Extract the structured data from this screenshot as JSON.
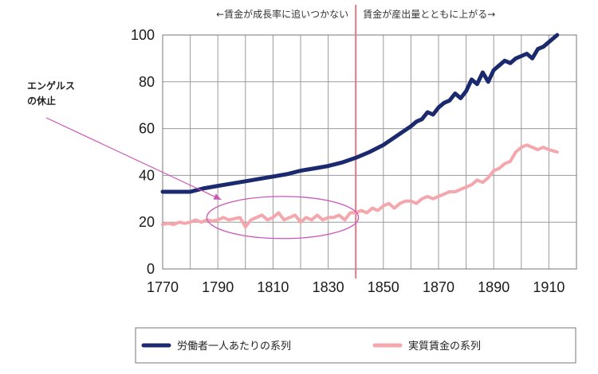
{
  "chart_data": {
    "type": "line",
    "title": "",
    "xlabel": "",
    "ylabel": "",
    "xlim": [
      1770,
      1920
    ],
    "ylim": [
      0,
      100
    ],
    "x_ticks": [
      1770,
      1790,
      1810,
      1830,
      1850,
      1870,
      1890,
      1910
    ],
    "y_ticks": [
      0,
      20,
      40,
      60,
      80,
      100
    ],
    "grid": true,
    "legend_position": "bottom",
    "divider_year": 1840,
    "notes": {
      "left": "←賃金が成長率に追いつかない",
      "right": "賃金が産出量とともに上がる→"
    },
    "annotation": {
      "line1": "エンゲルス",
      "line2": "の休止",
      "target_x": [
        1786,
        1841
      ],
      "target_y": [
        13,
        31
      ]
    },
    "series": [
      {
        "name": "労働者一人あたりの系列",
        "color": "#1b2a6e",
        "x": [
          1770,
          1775,
          1780,
          1785,
          1790,
          1795,
          1800,
          1805,
          1810,
          1815,
          1820,
          1825,
          1830,
          1835,
          1840,
          1845,
          1850,
          1855,
          1860,
          1862,
          1864,
          1866,
          1868,
          1870,
          1872,
          1874,
          1876,
          1878,
          1880,
          1882,
          1884,
          1886,
          1888,
          1890,
          1892,
          1894,
          1896,
          1898,
          1900,
          1902,
          1904,
          1906,
          1908,
          1910,
          1913
        ],
        "values": [
          33,
          33,
          33,
          34.5,
          35.5,
          36.5,
          37.5,
          38.5,
          39.5,
          40.5,
          42,
          43,
          44,
          45.5,
          47.5,
          50,
          53,
          57,
          61,
          63,
          64,
          67,
          66,
          69,
          71,
          72,
          75,
          73,
          76,
          81,
          79,
          84,
          80,
          85,
          87,
          89,
          88,
          90,
          91,
          92,
          90,
          94,
          95,
          97,
          100
        ]
      },
      {
        "name": "実質賃金の系列",
        "color": "#f4a7ad",
        "x": [
          1770,
          1772,
          1774,
          1776,
          1778,
          1780,
          1782,
          1784,
          1786,
          1788,
          1790,
          1792,
          1794,
          1796,
          1798,
          1800,
          1802,
          1804,
          1806,
          1808,
          1810,
          1812,
          1814,
          1816,
          1818,
          1820,
          1822,
          1824,
          1826,
          1828,
          1830,
          1832,
          1834,
          1836,
          1838,
          1840,
          1842,
          1844,
          1846,
          1848,
          1850,
          1852,
          1854,
          1856,
          1858,
          1860,
          1862,
          1864,
          1866,
          1868,
          1870,
          1872,
          1874,
          1876,
          1878,
          1880,
          1882,
          1884,
          1886,
          1888,
          1890,
          1892,
          1894,
          1896,
          1898,
          1900,
          1902,
          1904,
          1906,
          1908,
          1910,
          1913
        ],
        "values": [
          19,
          19.5,
          19,
          20,
          19.5,
          20,
          21,
          20,
          21,
          20.5,
          21,
          22,
          21,
          21.5,
          22,
          18,
          21,
          22,
          23,
          21,
          22,
          24,
          21,
          22,
          23,
          20,
          22,
          21,
          23,
          21,
          22,
          22,
          23,
          21,
          24,
          24,
          25,
          24,
          26,
          25,
          27,
          28,
          26,
          28,
          29,
          29,
          28,
          30,
          31,
          30,
          31,
          32,
          33,
          33,
          34,
          35,
          36,
          38,
          37,
          39,
          42,
          43,
          45,
          46,
          50,
          52,
          53,
          52,
          51,
          52,
          51,
          50
        ]
      }
    ]
  }
}
